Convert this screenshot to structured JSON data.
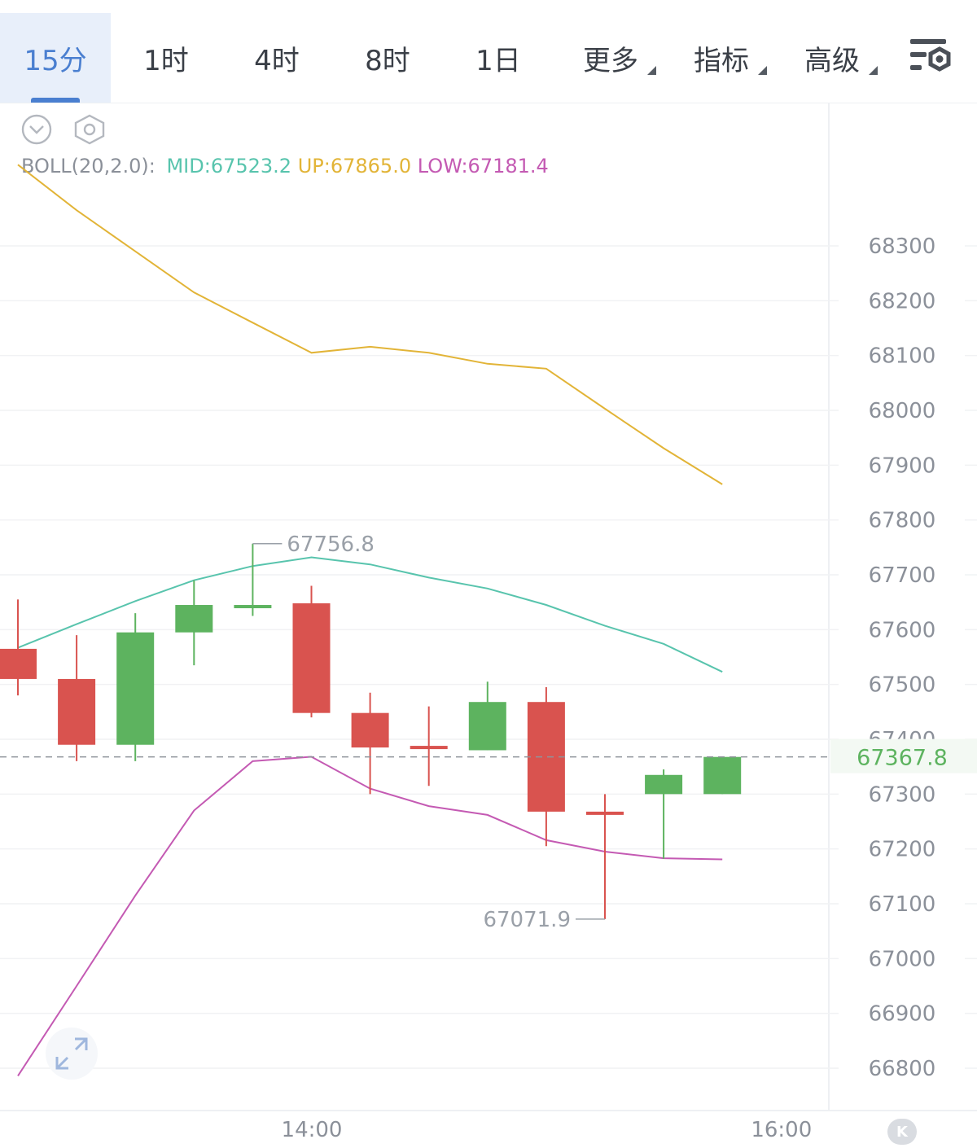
{
  "tabs": [
    {
      "label": "15分",
      "active": true
    },
    {
      "label": "1时",
      "active": false
    },
    {
      "label": "4时",
      "active": false
    },
    {
      "label": "8时",
      "active": false
    },
    {
      "label": "1日",
      "active": false
    },
    {
      "label": "更多",
      "active": false,
      "dropdown": true
    },
    {
      "label": "指标",
      "active": false,
      "dropdown": true
    },
    {
      "label": "高级",
      "active": false,
      "dropdown": true
    }
  ],
  "toolbar": {
    "settings_icon": "chart-settings-icon",
    "collapse_icon": "chevron-down-circle-icon",
    "indicator_icon": "hexagon-gear-icon"
  },
  "boll": {
    "label": "BOLL(20,2.0):",
    "mid_label": "MID:67523.2",
    "up_label": "UP:67865.0",
    "low_label": "LOW:67181.4"
  },
  "colors": {
    "up_candle": "#5db35f",
    "down_candle": "#d9534f",
    "mid_line": "#58c4ad",
    "up_line": "#e2b437",
    "low_line": "#c45ab3",
    "active_tab": "#4a7fd0",
    "axis_text": "#8b9099",
    "last_price": "#5db35f"
  },
  "chart_data": {
    "type": "candlestick",
    "y_ticks": [
      68300,
      68200,
      68100,
      68000,
      67900,
      67800,
      67700,
      67600,
      67500,
      67400,
      67300,
      67200,
      67100,
      67000,
      66900,
      66800
    ],
    "x_ticks": [
      {
        "label": "14:00",
        "index": 5
      },
      {
        "label": "16:00",
        "index": 13
      }
    ],
    "ylim": [
      66725,
      68385
    ],
    "last_price": {
      "value": 67367.8,
      "label": "67367.8"
    },
    "high_annotation": {
      "value": 67756.8,
      "label": "67756.8",
      "index": 4
    },
    "low_annotation": {
      "value": 67071.9,
      "label": "67071.9",
      "index": 10
    },
    "candles": [
      {
        "open": 67565,
        "high": 67655,
        "low": 67480,
        "close": 67510
      },
      {
        "open": 67510,
        "high": 67590,
        "low": 67360,
        "close": 67390
      },
      {
        "open": 67390,
        "high": 67630,
        "low": 67360,
        "close": 67595
      },
      {
        "open": 67595,
        "high": 67690,
        "low": 67535,
        "close": 67645
      },
      {
        "open": 67640,
        "high": 67756.8,
        "low": 67625,
        "close": 67645
      },
      {
        "open": 67648,
        "high": 67680,
        "low": 67440,
        "close": 67448
      },
      {
        "open": 67448,
        "high": 67485,
        "low": 67300,
        "close": 67385
      },
      {
        "open": 67388,
        "high": 67460,
        "low": 67315,
        "close": 67383
      },
      {
        "open": 67380,
        "high": 67505,
        "low": 67380,
        "close": 67468
      },
      {
        "open": 67468,
        "high": 67495,
        "low": 67205,
        "close": 67268
      },
      {
        "open": 67268,
        "high": 67300,
        "low": 67071.9,
        "close": 67263
      },
      {
        "open": 67300,
        "high": 67345,
        "low": 67182,
        "close": 67335
      },
      {
        "open": 67300,
        "high": 67368,
        "low": 67300,
        "close": 67367.8
      }
    ],
    "series": [
      {
        "name": "UP",
        "values": [
          68448,
          68365,
          68290,
          68215,
          68160,
          68105,
          68116,
          68105,
          68085,
          68076,
          68003,
          67931,
          67865
        ]
      },
      {
        "name": "MID",
        "values": [
          67567,
          67610,
          67652,
          67690,
          67716,
          67732,
          67719,
          67695,
          67675,
          67645,
          67607,
          67574,
          67523
        ]
      },
      {
        "name": "LOW",
        "values": [
          66786,
          66950,
          67115,
          67270,
          67360,
          67368,
          67310,
          67278,
          67262,
          67216,
          67195,
          67183,
          67181
        ]
      }
    ]
  }
}
